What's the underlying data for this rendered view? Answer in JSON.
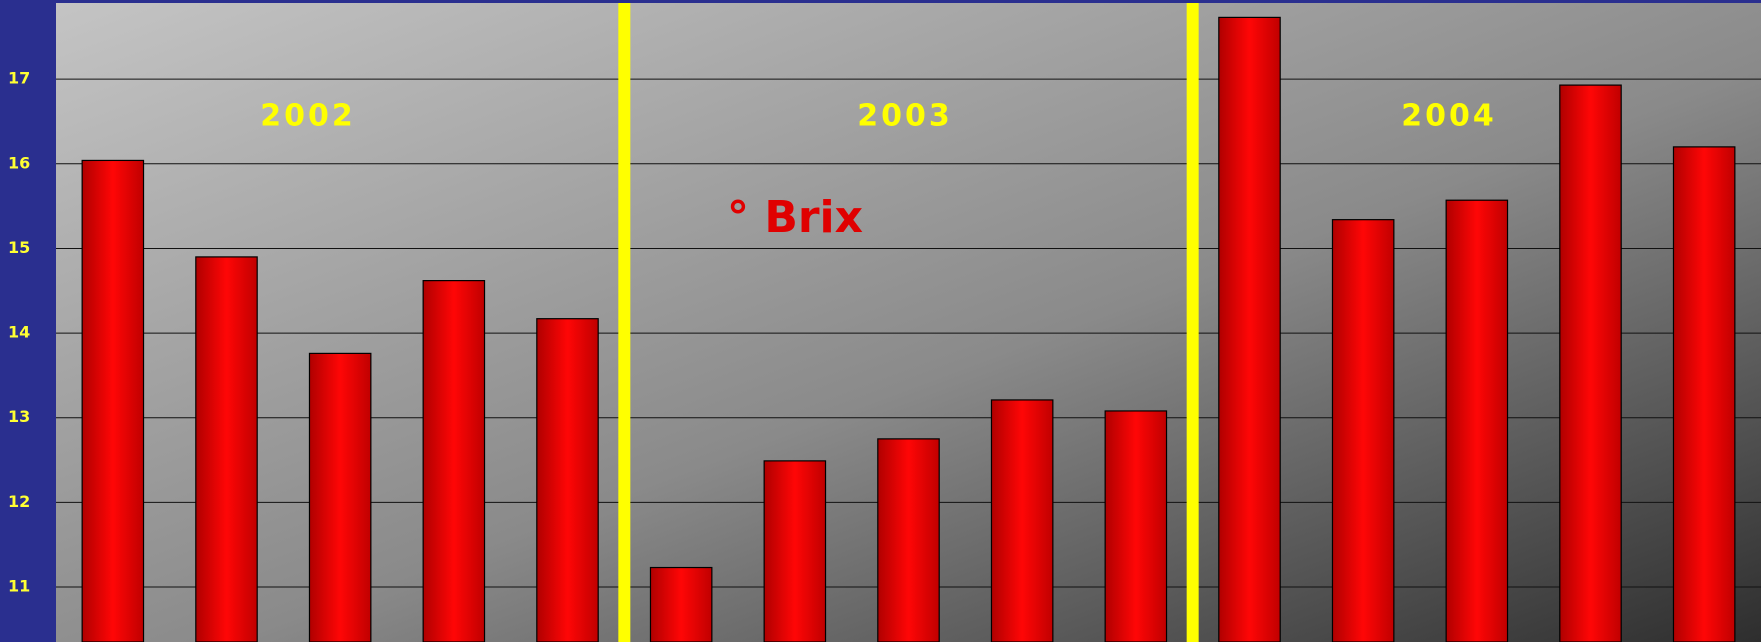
{
  "chart_data": {
    "type": "bar",
    "annotations": [
      "2002",
      "2003",
      "2004",
      "° Brix"
    ],
    "categories": [
      null,
      null,
      null,
      null,
      null,
      null,
      null,
      null,
      null,
      null,
      null,
      null,
      null,
      null,
      null
    ],
    "values": [
      16.04,
      14.9,
      13.76,
      14.62,
      14.17,
      11.23,
      12.49,
      12.75,
      13.21,
      13.08,
      17.73,
      15.34,
      15.57,
      16.93,
      16.2
    ],
    "color": "#ff0000",
    "ylim": [
      10.35,
      17.9
    ],
    "yticks": [
      11,
      12,
      13,
      14,
      15,
      16,
      17
    ],
    "grid": true
  }
}
